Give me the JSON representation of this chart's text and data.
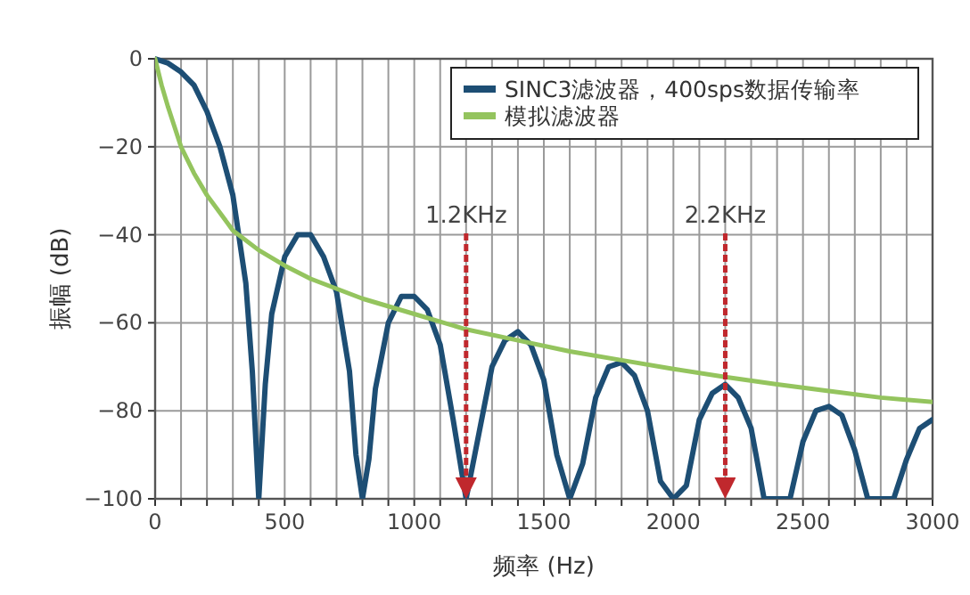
{
  "chart_data": {
    "type": "line",
    "xlabel": "频率 (Hz)",
    "ylabel": "振幅 (dB)",
    "xlim": [
      0,
      3000
    ],
    "ylim": [
      -100,
      0
    ],
    "xticks": [
      0,
      {
        "value": 100,
        "label": null
      },
      {
        "value": 200,
        "label": null
      },
      {
        "value": 300,
        "label": null
      },
      {
        "value": 400,
        "label": null
      },
      500,
      {
        "value": 600,
        "label": null
      },
      {
        "value": 700,
        "label": null
      },
      {
        "value": 800,
        "label": null
      },
      {
        "value": 900,
        "label": null
      },
      1000,
      {
        "value": 1100,
        "label": null
      },
      {
        "value": 1200,
        "label": null
      },
      {
        "value": 1300,
        "label": null
      },
      {
        "value": 1400,
        "label": null
      },
      1500,
      {
        "value": 1600,
        "label": null
      },
      {
        "value": 1700,
        "label": null
      },
      {
        "value": 1800,
        "label": null
      },
      {
        "value": 1900,
        "label": null
      },
      2000,
      {
        "value": 2100,
        "label": null
      },
      {
        "value": 2200,
        "label": null
      },
      {
        "value": 2300,
        "label": null
      },
      {
        "value": 2400,
        "label": null
      },
      2500,
      {
        "value": 2600,
        "label": null
      },
      {
        "value": 2700,
        "label": null
      },
      {
        "value": 2800,
        "label": null
      },
      {
        "value": 2900,
        "label": null
      },
      3000
    ],
    "yticks": [
      0,
      {
        "value": -20,
        "label": "−20"
      },
      {
        "value": -40,
        "label": "−40"
      },
      {
        "value": -60,
        "label": "−60"
      },
      {
        "value": -80,
        "label": "−80"
      },
      {
        "value": -100,
        "label": "−100"
      }
    ],
    "grid": true,
    "legend": "top right",
    "line_style": "solid",
    "marker": "none",
    "series": [
      {
        "name": "SINC3滤波器，400sps数据传输率",
        "color": "#1d4e74",
        "x": [
          0,
          50,
          100,
          150,
          200,
          250,
          300,
          350,
          375,
          400,
          425,
          450,
          500,
          550,
          600,
          650,
          700,
          750,
          775,
          800,
          825,
          850,
          900,
          950,
          1000,
          1050,
          1100,
          1150,
          1200,
          1250,
          1300,
          1350,
          1400,
          1450,
          1500,
          1550,
          1600,
          1650,
          1700,
          1750,
          1800,
          1850,
          1900,
          1950,
          2000,
          2050,
          2100,
          2150,
          2200,
          2250,
          2300,
          2350,
          2400,
          2450,
          2500,
          2550,
          2600,
          2650,
          2700,
          2750,
          2800,
          2850,
          2900,
          2950,
          3000
        ],
        "values": [
          0,
          -1,
          -3,
          -6,
          -12,
          -20,
          -31,
          -51,
          -71,
          -100,
          -74,
          -58,
          -45,
          -40,
          -40,
          -45,
          -53,
          -71,
          -90,
          -100,
          -91,
          -75,
          -60,
          -54,
          -54,
          -57,
          -65,
          -82,
          -100,
          -85,
          -70,
          -64,
          -62,
          -65,
          -73,
          -90,
          -100,
          -92,
          -77,
          -70,
          -69,
          -72,
          -80,
          -96,
          -100,
          -97,
          -82,
          -76,
          -74,
          -77,
          -84,
          -100,
          -100,
          -100,
          -87,
          -80,
          -79,
          -81,
          -89,
          -100,
          -100,
          -100,
          -91,
          -84,
          -82
        ]
      },
      {
        "name": "模拟滤波器",
        "color": "#94c45e",
        "x": [
          0,
          25,
          50,
          100,
          150,
          200,
          300,
          400,
          500,
          600,
          800,
          1000,
          1200,
          1400,
          1600,
          1800,
          2000,
          2200,
          2400,
          2600,
          2800,
          3000
        ],
        "values": [
          0,
          -6,
          -11,
          -20,
          -26,
          -31,
          -39,
          -43.5,
          -47,
          -50,
          -54.5,
          -58,
          -61.5,
          -64,
          -66.5,
          -68.5,
          -70.5,
          -72.3,
          -74,
          -75.5,
          -77,
          -78
        ]
      }
    ],
    "ref_lines": [
      {
        "axis": "x",
        "value": 1200,
        "label": "1.2KHz",
        "color": "#c0282d",
        "line_style": "dashed"
      },
      {
        "axis": "x",
        "value": 2200,
        "label": "2.2KHz",
        "color": "#c0282d",
        "line_style": "dashed"
      }
    ]
  }
}
